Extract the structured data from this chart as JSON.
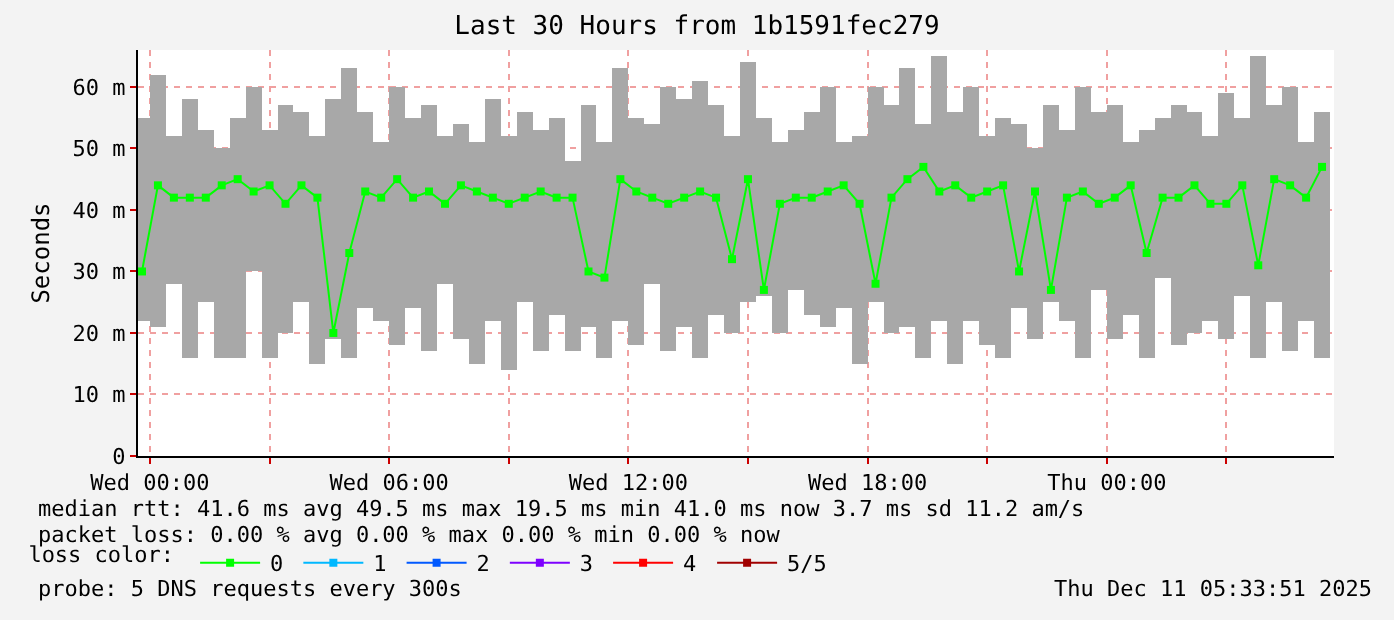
{
  "chart_data": {
    "type": "bar",
    "title": "Last 30 Hours from 1b1591fec279",
    "ylabel": "Seconds",
    "x": [
      "2025-12-09T23:48",
      "2025-12-10T00:12",
      "2025-12-10T00:36",
      "2025-12-10T01:00",
      "2025-12-10T01:24",
      "2025-12-10T01:48",
      "2025-12-10T02:12",
      "2025-12-10T02:36",
      "2025-12-10T03:00",
      "2025-12-10T03:24",
      "2025-12-10T03:48",
      "2025-12-10T04:12",
      "2025-12-10T04:36",
      "2025-12-10T05:00",
      "2025-12-10T05:24",
      "2025-12-10T05:48",
      "2025-12-10T06:12",
      "2025-12-10T06:36",
      "2025-12-10T07:00",
      "2025-12-10T07:24",
      "2025-12-10T07:48",
      "2025-12-10T08:12",
      "2025-12-10T08:36",
      "2025-12-10T09:00",
      "2025-12-10T09:24",
      "2025-12-10T09:48",
      "2025-12-10T10:12",
      "2025-12-10T10:36",
      "2025-12-10T11:00",
      "2025-12-10T11:24",
      "2025-12-10T11:48",
      "2025-12-10T12:12",
      "2025-12-10T12:36",
      "2025-12-10T13:00",
      "2025-12-10T13:24",
      "2025-12-10T13:48",
      "2025-12-10T14:12",
      "2025-12-10T14:36",
      "2025-12-10T15:00",
      "2025-12-10T15:24",
      "2025-12-10T15:48",
      "2025-12-10T16:12",
      "2025-12-10T16:36",
      "2025-12-10T17:00",
      "2025-12-10T17:24",
      "2025-12-10T17:48",
      "2025-12-10T18:12",
      "2025-12-10T18:36",
      "2025-12-10T19:00",
      "2025-12-10T19:24",
      "2025-12-10T19:48",
      "2025-12-10T20:12",
      "2025-12-10T20:36",
      "2025-12-10T21:00",
      "2025-12-10T21:24",
      "2025-12-10T21:48",
      "2025-12-10T22:12",
      "2025-12-10T22:36",
      "2025-12-10T23:00",
      "2025-12-10T23:24",
      "2025-12-10T23:48",
      "2025-12-11T00:12",
      "2025-12-11T00:36",
      "2025-12-11T01:00",
      "2025-12-11T01:24",
      "2025-12-11T01:48",
      "2025-12-11T02:12",
      "2025-12-11T02:36",
      "2025-12-11T03:00",
      "2025-12-11T03:24",
      "2025-12-11T03:48",
      "2025-12-11T04:12",
      "2025-12-11T04:36",
      "2025-12-11T05:00",
      "2025-12-11T05:24"
    ],
    "series": [
      {
        "color": "#a8a8a8",
        "base": [
          22,
          21,
          28,
          16,
          25,
          16,
          16,
          30,
          16,
          20,
          25,
          15,
          19,
          16,
          24,
          22,
          18,
          24,
          17,
          28,
          19,
          15,
          22,
          14,
          25,
          17,
          23,
          17,
          21,
          16,
          22,
          18,
          28,
          17,
          21,
          16,
          23,
          20,
          25,
          26,
          20,
          27,
          23,
          21,
          24,
          15,
          25,
          20,
          21,
          16,
          22,
          15,
          22,
          18,
          16,
          24,
          19,
          25,
          22,
          16,
          27,
          19,
          23,
          16,
          29,
          18,
          20,
          22,
          19,
          26,
          16,
          25,
          17,
          22,
          16
        ],
        "values": [
          33,
          41,
          24,
          42,
          28,
          34,
          39,
          30,
          37,
          37,
          31,
          37,
          39,
          47,
          32,
          29,
          42,
          31,
          40,
          24,
          35,
          36,
          36,
          38,
          31,
          36,
          32,
          31,
          36,
          35,
          41,
          37,
          26,
          43,
          37,
          45,
          34,
          32,
          39,
          29,
          31,
          26,
          33,
          39,
          27,
          37,
          35,
          37,
          42,
          38,
          43,
          41,
          38,
          34,
          39,
          30,
          31,
          32,
          31,
          44,
          29,
          38,
          28,
          37,
          26,
          39,
          36,
          30,
          40,
          29,
          49,
          32,
          43,
          29,
          40
        ]
      },
      {
        "type": "line",
        "name": "0",
        "color": "#00ff00",
        "values": [
          30,
          44,
          42,
          42,
          42,
          44,
          45,
          43,
          44,
          41,
          44,
          42,
          20,
          33,
          43,
          42,
          45,
          42,
          43,
          41,
          44,
          43,
          42,
          41,
          42,
          43,
          42,
          42,
          30,
          29,
          45,
          43,
          42,
          41,
          42,
          43,
          42,
          32,
          45,
          27,
          41,
          42,
          42,
          43,
          44,
          41,
          28,
          42,
          45,
          47,
          43,
          44,
          42,
          43,
          44,
          30,
          43,
          27,
          42,
          43,
          41,
          42,
          44,
          33,
          42,
          42,
          44,
          41,
          41,
          44,
          31,
          45,
          44,
          42,
          47
        ]
      },
      {
        "type": "line",
        "name": "1",
        "color": "#00b8ff",
        "values": [
          null,
          null,
          null,
          null,
          null,
          null,
          null,
          null,
          null,
          null,
          null,
          null,
          null,
          null,
          null,
          null,
          null,
          null,
          null,
          null,
          null,
          null,
          null,
          null,
          null,
          null,
          null,
          null,
          null,
          null,
          null,
          null,
          null,
          null,
          null,
          null,
          null,
          null,
          null,
          null,
          null,
          null,
          null,
          null,
          null,
          null,
          null,
          null,
          null,
          null,
          null,
          null,
          null,
          null,
          null,
          null,
          null,
          null,
          null,
          null,
          null,
          null,
          null,
          null,
          null,
          null,
          null,
          null,
          null,
          null,
          null,
          null,
          null,
          null,
          null
        ]
      },
      {
        "type": "line",
        "name": "2",
        "color": "#0059ff",
        "values": [
          null,
          null,
          null,
          null,
          null,
          null,
          null,
          null,
          null,
          null,
          null,
          null,
          null,
          null,
          null,
          null,
          null,
          null,
          null,
          null,
          null,
          null,
          null,
          null,
          null,
          null,
          null,
          null,
          null,
          null,
          null,
          null,
          null,
          null,
          null,
          null,
          null,
          null,
          null,
          null,
          null,
          null,
          null,
          null,
          null,
          null,
          null,
          null,
          null,
          null,
          null,
          null,
          null,
          null,
          null,
          null,
          null,
          null,
          null,
          null,
          null,
          null,
          null,
          null,
          null,
          null,
          null,
          null,
          null,
          null,
          null,
          null,
          null,
          null,
          null
        ]
      },
      {
        "type": "line",
        "name": "3",
        "color": "#7e00ff",
        "values": [
          null,
          null,
          null,
          null,
          null,
          null,
          null,
          null,
          null,
          null,
          null,
          null,
          null,
          null,
          null,
          null,
          null,
          null,
          null,
          null,
          null,
          null,
          null,
          null,
          null,
          null,
          null,
          null,
          null,
          null,
          null,
          null,
          null,
          null,
          null,
          null,
          null,
          null,
          null,
          null,
          null,
          null,
          null,
          null,
          null,
          null,
          null,
          null,
          null,
          null,
          null,
          null,
          null,
          null,
          null,
          null,
          null,
          null,
          null,
          null,
          null,
          null,
          null,
          null,
          null,
          null,
          null,
          null,
          null,
          null,
          null,
          null,
          null,
          null,
          null
        ]
      },
      {
        "type": "line",
        "name": "4",
        "color": "#ff0000",
        "values": [
          null,
          null,
          null,
          null,
          null,
          null,
          null,
          null,
          null,
          null,
          null,
          null,
          null,
          null,
          null,
          null,
          null,
          null,
          null,
          null,
          null,
          null,
          null,
          null,
          null,
          null,
          null,
          null,
          null,
          null,
          null,
          null,
          null,
          null,
          null,
          null,
          null,
          null,
          null,
          null,
          null,
          null,
          null,
          null,
          null,
          null,
          null,
          null,
          null,
          null,
          null,
          null,
          null,
          null,
          null,
          null,
          null,
          null,
          null,
          null,
          null,
          null,
          null,
          null,
          null,
          null,
          null,
          null,
          null,
          null,
          null,
          null,
          null,
          null,
          null
        ]
      },
      {
        "type": "line",
        "name": "5/5",
        "color": "#a10000",
        "values": [
          null,
          null,
          null,
          null,
          null,
          null,
          null,
          null,
          null,
          null,
          null,
          null,
          null,
          null,
          null,
          null,
          null,
          null,
          null,
          null,
          null,
          null,
          null,
          null,
          null,
          null,
          null,
          null,
          null,
          null,
          null,
          null,
          null,
          null,
          null,
          null,
          null,
          null,
          null,
          null,
          null,
          null,
          null,
          null,
          null,
          null,
          null,
          null,
          null,
          null,
          null,
          null,
          null,
          null,
          null,
          null,
          null,
          null,
          null,
          null,
          null,
          null,
          null,
          null,
          null,
          null,
          null,
          null,
          null,
          null,
          null,
          null,
          null,
          null,
          null
        ]
      }
    ],
    "xlim": [
      "2025-12-09T23:42",
      "2025-12-11T05:42"
    ],
    "xticks": [
      {
        "value": "2025-12-10T00:00",
        "label": "Wed 00:00"
      },
      {
        "value": "2025-12-10T03:00",
        "label": null
      },
      {
        "value": "2025-12-10T06:00",
        "label": "Wed 06:00"
      },
      {
        "value": "2025-12-10T09:00",
        "label": null
      },
      {
        "value": "2025-12-10T12:00",
        "label": "Wed 12:00"
      },
      {
        "value": "2025-12-10T15:00",
        "label": null
      },
      {
        "value": "2025-12-10T18:00",
        "label": "Wed 18:00"
      },
      {
        "value": "2025-12-10T21:00",
        "label": null
      },
      {
        "value": "2025-12-11T00:00",
        "label": "Thu 00:00"
      },
      {
        "value": "2025-12-11T03:00",
        "label": null
      }
    ],
    "ylim": [
      0,
      66
    ],
    "yticks": [
      0,
      {
        "value": 10,
        "label": "10 m"
      },
      {
        "value": 20,
        "label": "20 m"
      },
      {
        "value": 30,
        "label": "30 m"
      },
      {
        "value": 40,
        "label": "40 m"
      },
      {
        "value": 50,
        "label": "50 m"
      },
      {
        "value": 60,
        "label": "60 m"
      }
    ],
    "grid": true,
    "marker": "square",
    "legend": "bottom left",
    "legend_title": "loss color:",
    "annotations": [
      "median rtt: 41.6 ms avg 49.5 ms max 19.5 ms min 41.0 ms now 3.7 ms sd 11.2 am/s",
      "packet loss: 0.00 % avg 0.00 % max 0.00 % min 0.00 % now",
      "probe: 5 DNS requests every 300s",
      "Thu Dec 11 05:33:51 2025"
    ]
  }
}
